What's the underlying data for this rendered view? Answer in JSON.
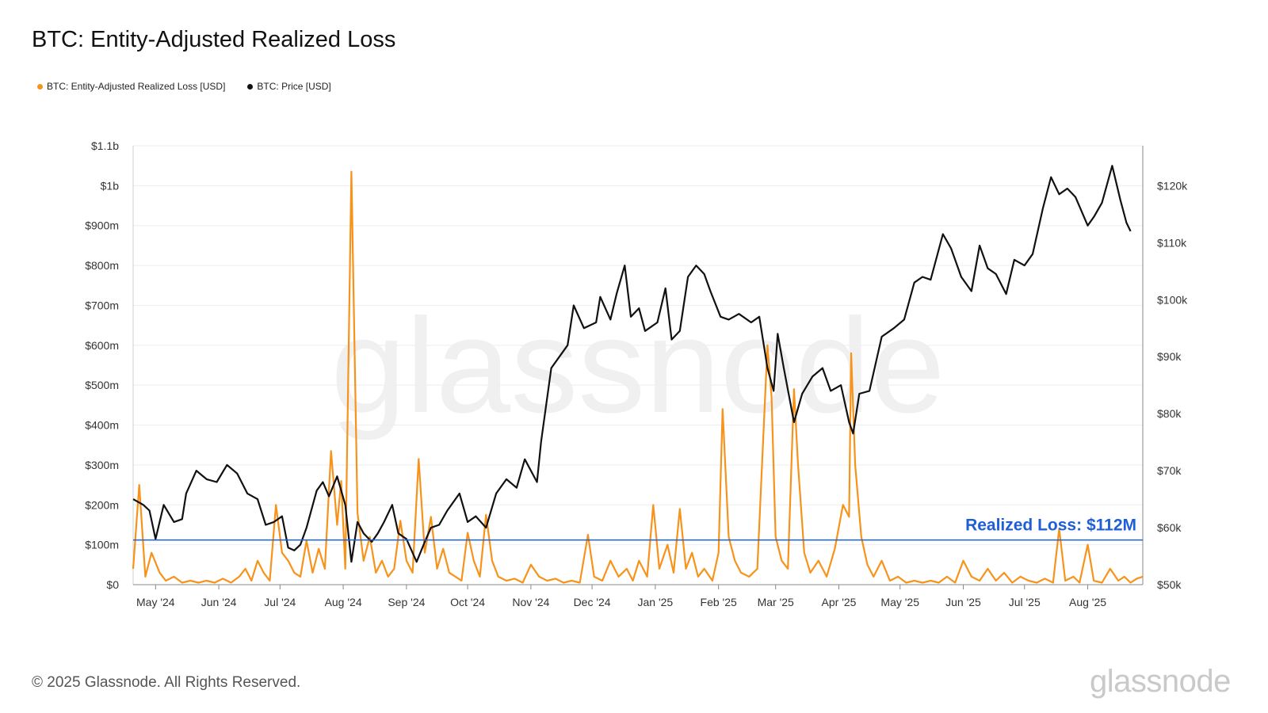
{
  "title": "BTC: Entity-Adjusted Realized Loss",
  "legend": {
    "loss": "BTC: Entity-Adjusted Realized Loss [USD]",
    "price": "BTC: Price [USD]"
  },
  "footer": "© 2025 Glassnode. All Rights Reserved.",
  "watermark": "glassnode",
  "colors": {
    "loss": "#f7931a",
    "price": "#111111",
    "reference": "#1f5fd6",
    "grid": "#eeeeee"
  },
  "chart_data": {
    "type": "line",
    "series": [
      {
        "name": "BTC: Entity-Adjusted Realized Loss [USD]",
        "axis": "left",
        "points": [
          [
            "2024-04-20",
            40
          ],
          [
            "2024-04-23",
            250
          ],
          [
            "2024-04-26",
            20
          ],
          [
            "2024-04-29",
            80
          ],
          [
            "2024-05-03",
            30
          ],
          [
            "2024-05-06",
            10
          ],
          [
            "2024-05-10",
            20
          ],
          [
            "2024-05-14",
            5
          ],
          [
            "2024-05-18",
            10
          ],
          [
            "2024-05-22",
            5
          ],
          [
            "2024-05-26",
            10
          ],
          [
            "2024-05-30",
            5
          ],
          [
            "2024-06-03",
            15
          ],
          [
            "2024-06-07",
            5
          ],
          [
            "2024-06-11",
            20
          ],
          [
            "2024-06-14",
            40
          ],
          [
            "2024-06-17",
            10
          ],
          [
            "2024-06-20",
            60
          ],
          [
            "2024-06-23",
            30
          ],
          [
            "2024-06-26",
            10
          ],
          [
            "2024-06-29",
            200
          ],
          [
            "2024-07-02",
            80
          ],
          [
            "2024-07-05",
            60
          ],
          [
            "2024-07-08",
            30
          ],
          [
            "2024-07-11",
            20
          ],
          [
            "2024-07-14",
            110
          ],
          [
            "2024-07-17",
            30
          ],
          [
            "2024-07-20",
            90
          ],
          [
            "2024-07-23",
            40
          ],
          [
            "2024-07-26",
            335
          ],
          [
            "2024-07-29",
            150
          ],
          [
            "2024-07-31",
            260
          ],
          [
            "2024-08-02",
            40
          ],
          [
            "2024-08-05",
            1035
          ],
          [
            "2024-08-08",
            180
          ],
          [
            "2024-08-11",
            60
          ],
          [
            "2024-08-14",
            120
          ],
          [
            "2024-08-17",
            30
          ],
          [
            "2024-08-20",
            60
          ],
          [
            "2024-08-23",
            20
          ],
          [
            "2024-08-26",
            40
          ],
          [
            "2024-08-29",
            160
          ],
          [
            "2024-09-01",
            60
          ],
          [
            "2024-09-04",
            30
          ],
          [
            "2024-09-07",
            315
          ],
          [
            "2024-09-10",
            80
          ],
          [
            "2024-09-13",
            170
          ],
          [
            "2024-09-16",
            40
          ],
          [
            "2024-09-19",
            90
          ],
          [
            "2024-09-22",
            30
          ],
          [
            "2024-09-25",
            20
          ],
          [
            "2024-09-28",
            10
          ],
          [
            "2024-10-01",
            130
          ],
          [
            "2024-10-04",
            60
          ],
          [
            "2024-10-07",
            20
          ],
          [
            "2024-10-10",
            175
          ],
          [
            "2024-10-13",
            60
          ],
          [
            "2024-10-16",
            20
          ],
          [
            "2024-10-20",
            10
          ],
          [
            "2024-10-24",
            15
          ],
          [
            "2024-10-28",
            5
          ],
          [
            "2024-11-01",
            50
          ],
          [
            "2024-11-05",
            20
          ],
          [
            "2024-11-09",
            10
          ],
          [
            "2024-11-13",
            15
          ],
          [
            "2024-11-17",
            5
          ],
          [
            "2024-11-21",
            10
          ],
          [
            "2024-11-25",
            5
          ],
          [
            "2024-11-29",
            125
          ],
          [
            "2024-12-02",
            20
          ],
          [
            "2024-12-06",
            10
          ],
          [
            "2024-12-10",
            60
          ],
          [
            "2024-12-14",
            20
          ],
          [
            "2024-12-18",
            40
          ],
          [
            "2024-12-21",
            10
          ],
          [
            "2024-12-24",
            60
          ],
          [
            "2024-12-28",
            20
          ],
          [
            "2024-12-31",
            200
          ],
          [
            "2025-01-03",
            40
          ],
          [
            "2025-01-07",
            100
          ],
          [
            "2025-01-10",
            30
          ],
          [
            "2025-01-13",
            190
          ],
          [
            "2025-01-16",
            40
          ],
          [
            "2025-01-19",
            80
          ],
          [
            "2025-01-22",
            20
          ],
          [
            "2025-01-25",
            40
          ],
          [
            "2025-01-29",
            10
          ],
          [
            "2025-02-01",
            80
          ],
          [
            "2025-02-03",
            440
          ],
          [
            "2025-02-06",
            120
          ],
          [
            "2025-02-09",
            60
          ],
          [
            "2025-02-12",
            30
          ],
          [
            "2025-02-16",
            20
          ],
          [
            "2025-02-20",
            40
          ],
          [
            "2025-02-25",
            600
          ],
          [
            "2025-02-27",
            470
          ],
          [
            "2025-03-01",
            120
          ],
          [
            "2025-03-04",
            60
          ],
          [
            "2025-03-07",
            40
          ],
          [
            "2025-03-10",
            490
          ],
          [
            "2025-03-12",
            300
          ],
          [
            "2025-03-15",
            80
          ],
          [
            "2025-03-18",
            30
          ],
          [
            "2025-03-22",
            60
          ],
          [
            "2025-03-26",
            20
          ],
          [
            "2025-03-30",
            90
          ],
          [
            "2025-04-03",
            200
          ],
          [
            "2025-04-06",
            170
          ],
          [
            "2025-04-07",
            580
          ],
          [
            "2025-04-09",
            300
          ],
          [
            "2025-04-12",
            120
          ],
          [
            "2025-04-15",
            50
          ],
          [
            "2025-04-18",
            20
          ],
          [
            "2025-04-22",
            60
          ],
          [
            "2025-04-26",
            10
          ],
          [
            "2025-04-30",
            20
          ],
          [
            "2025-05-04",
            5
          ],
          [
            "2025-05-08",
            10
          ],
          [
            "2025-05-12",
            5
          ],
          [
            "2025-05-16",
            10
          ],
          [
            "2025-05-20",
            5
          ],
          [
            "2025-05-24",
            20
          ],
          [
            "2025-05-28",
            5
          ],
          [
            "2025-06-01",
            60
          ],
          [
            "2025-06-05",
            20
          ],
          [
            "2025-06-09",
            10
          ],
          [
            "2025-06-13",
            40
          ],
          [
            "2025-06-17",
            10
          ],
          [
            "2025-06-21",
            30
          ],
          [
            "2025-06-25",
            5
          ],
          [
            "2025-06-29",
            20
          ],
          [
            "2025-07-03",
            10
          ],
          [
            "2025-07-07",
            5
          ],
          [
            "2025-07-11",
            15
          ],
          [
            "2025-07-15",
            5
          ],
          [
            "2025-07-18",
            140
          ],
          [
            "2025-07-21",
            10
          ],
          [
            "2025-07-25",
            20
          ],
          [
            "2025-07-28",
            5
          ],
          [
            "2025-08-01",
            100
          ],
          [
            "2025-08-04",
            10
          ],
          [
            "2025-08-08",
            5
          ],
          [
            "2025-08-12",
            40
          ],
          [
            "2025-08-16",
            10
          ],
          [
            "2025-08-19",
            20
          ],
          [
            "2025-08-22",
            5
          ],
          [
            "2025-08-25",
            15
          ],
          [
            "2025-08-28",
            20
          ]
        ]
      },
      {
        "name": "BTC: Price [USD]",
        "axis": "right",
        "points": [
          [
            "2024-04-20",
            65000
          ],
          [
            "2024-04-25",
            64000
          ],
          [
            "2024-04-28",
            63000
          ],
          [
            "2024-05-01",
            58000
          ],
          [
            "2024-05-05",
            64000
          ],
          [
            "2024-05-10",
            61000
          ],
          [
            "2024-05-14",
            61500
          ],
          [
            "2024-05-16",
            66000
          ],
          [
            "2024-05-21",
            70000
          ],
          [
            "2024-05-26",
            68500
          ],
          [
            "2024-05-31",
            68000
          ],
          [
            "2024-06-05",
            71000
          ],
          [
            "2024-06-10",
            69500
          ],
          [
            "2024-06-15",
            66000
          ],
          [
            "2024-06-20",
            65000
          ],
          [
            "2024-06-24",
            60500
          ],
          [
            "2024-06-28",
            61000
          ],
          [
            "2024-07-02",
            62000
          ],
          [
            "2024-07-05",
            56500
          ],
          [
            "2024-07-08",
            56000
          ],
          [
            "2024-07-11",
            57000
          ],
          [
            "2024-07-14",
            60000
          ],
          [
            "2024-07-19",
            66500
          ],
          [
            "2024-07-22",
            68000
          ],
          [
            "2024-07-25",
            65500
          ],
          [
            "2024-07-29",
            69000
          ],
          [
            "2024-08-02",
            64000
          ],
          [
            "2024-08-05",
            54000
          ],
          [
            "2024-08-08",
            61000
          ],
          [
            "2024-08-11",
            59000
          ],
          [
            "2024-08-15",
            57500
          ],
          [
            "2024-08-18",
            59000
          ],
          [
            "2024-08-21",
            61000
          ],
          [
            "2024-08-25",
            64000
          ],
          [
            "2024-08-28",
            59000
          ],
          [
            "2024-09-01",
            58000
          ],
          [
            "2024-09-06",
            54000
          ],
          [
            "2024-09-10",
            57500
          ],
          [
            "2024-09-13",
            60000
          ],
          [
            "2024-09-17",
            60500
          ],
          [
            "2024-09-21",
            63000
          ],
          [
            "2024-09-27",
            66000
          ],
          [
            "2024-10-01",
            61000
          ],
          [
            "2024-10-05",
            62000
          ],
          [
            "2024-10-10",
            60000
          ],
          [
            "2024-10-15",
            66000
          ],
          [
            "2024-10-20",
            68500
          ],
          [
            "2024-10-25",
            67000
          ],
          [
            "2024-10-29",
            72000
          ],
          [
            "2024-11-04",
            68000
          ],
          [
            "2024-11-06",
            75000
          ],
          [
            "2024-11-11",
            88000
          ],
          [
            "2024-11-15",
            90000
          ],
          [
            "2024-11-19",
            92000
          ],
          [
            "2024-11-22",
            99000
          ],
          [
            "2024-11-27",
            95000
          ],
          [
            "2024-12-03",
            96000
          ],
          [
            "2024-12-05",
            100500
          ],
          [
            "2024-12-10",
            96500
          ],
          [
            "2024-12-13",
            101000
          ],
          [
            "2024-12-17",
            106000
          ],
          [
            "2024-12-20",
            97000
          ],
          [
            "2024-12-24",
            98500
          ],
          [
            "2024-12-27",
            94500
          ],
          [
            "2025-01-02",
            96000
          ],
          [
            "2025-01-06",
            102000
          ],
          [
            "2025-01-09",
            93000
          ],
          [
            "2025-01-13",
            94500
          ],
          [
            "2025-01-17",
            104000
          ],
          [
            "2025-01-21",
            106000
          ],
          [
            "2025-01-25",
            104500
          ],
          [
            "2025-01-28",
            101500
          ],
          [
            "2025-02-02",
            97000
          ],
          [
            "2025-02-06",
            96500
          ],
          [
            "2025-02-11",
            97500
          ],
          [
            "2025-02-17",
            96000
          ],
          [
            "2025-02-21",
            97000
          ],
          [
            "2025-02-25",
            88000
          ],
          [
            "2025-02-28",
            84000
          ],
          [
            "2025-03-02",
            94000
          ],
          [
            "2025-03-05",
            88000
          ],
          [
            "2025-03-10",
            78500
          ],
          [
            "2025-03-14",
            83500
          ],
          [
            "2025-03-19",
            86500
          ],
          [
            "2025-03-24",
            88000
          ],
          [
            "2025-03-28",
            84000
          ],
          [
            "2025-04-02",
            85000
          ],
          [
            "2025-04-06",
            78500
          ],
          [
            "2025-04-08",
            76500
          ],
          [
            "2025-04-11",
            83500
          ],
          [
            "2025-04-16",
            84000
          ],
          [
            "2025-04-22",
            93500
          ],
          [
            "2025-04-28",
            95000
          ],
          [
            "2025-05-03",
            96500
          ],
          [
            "2025-05-08",
            103000
          ],
          [
            "2025-05-12",
            104000
          ],
          [
            "2025-05-16",
            103500
          ],
          [
            "2025-05-22",
            111500
          ],
          [
            "2025-05-26",
            109000
          ],
          [
            "2025-05-31",
            104000
          ],
          [
            "2025-06-05",
            101500
          ],
          [
            "2025-06-09",
            109500
          ],
          [
            "2025-06-13",
            105500
          ],
          [
            "2025-06-17",
            104500
          ],
          [
            "2025-06-22",
            101000
          ],
          [
            "2025-06-26",
            107000
          ],
          [
            "2025-07-01",
            106000
          ],
          [
            "2025-07-05",
            108000
          ],
          [
            "2025-07-10",
            116000
          ],
          [
            "2025-07-14",
            121500
          ],
          [
            "2025-07-18",
            118500
          ],
          [
            "2025-07-22",
            119500
          ],
          [
            "2025-07-26",
            118000
          ],
          [
            "2025-08-01",
            113000
          ],
          [
            "2025-08-04",
            114500
          ],
          [
            "2025-08-08",
            117000
          ],
          [
            "2025-08-13",
            123500
          ],
          [
            "2025-08-17",
            117500
          ],
          [
            "2025-08-20",
            113500
          ],
          [
            "2025-08-22",
            112000
          ]
        ]
      }
    ],
    "reference_line": {
      "value": 112,
      "label": "Realized Loss: $112M"
    },
    "x_ticks": [
      "May '24",
      "Jun '24",
      "Jul '24",
      "Aug '24",
      "Sep '24",
      "Oct '24",
      "Nov '24",
      "Dec '24",
      "Jan '25",
      "Feb '25",
      "Mar '25",
      "Apr '25",
      "May '25",
      "Jun '25",
      "Jul '25",
      "Aug '25"
    ],
    "y_left_ticks": [
      "$0",
      "$100m",
      "$200m",
      "$300m",
      "$400m",
      "$500m",
      "$600m",
      "$700m",
      "$800m",
      "$900m",
      "$1b",
      "$1.1b"
    ],
    "y_right_ticks": [
      "$50k",
      "$60k",
      "$70k",
      "$80k",
      "$90k",
      "$100k",
      "$110k",
      "$120k"
    ],
    "y_left_range": [
      0,
      1100
    ],
    "y_right_range": [
      50000,
      127000
    ],
    "x_range": [
      "2024-04-20",
      "2025-08-28"
    ],
    "grid": true
  }
}
